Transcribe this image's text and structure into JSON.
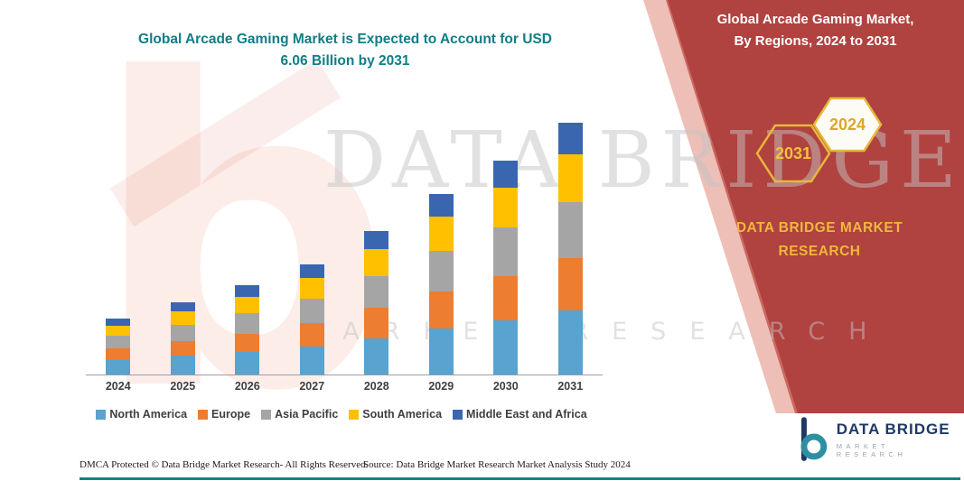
{
  "title": {
    "line1": "Global Arcade Gaming Market is Expected to Account for USD",
    "line2": "6.06 Billion by 2031"
  },
  "side_panel": {
    "heading_line1": "Global Arcade Gaming Market,",
    "heading_line2": "By Regions, 2024 to 2031",
    "hex_left_year": "2031",
    "hex_right_year": "2024",
    "brand_line1": "DATA BRIDGE MARKET",
    "brand_line2": "RESEARCH"
  },
  "watermark": {
    "line1": "DATA BRIDGE",
    "line2": "MARKET RESEARCH"
  },
  "chart_data": {
    "type": "bar",
    "stacked": true,
    "title": "Global Arcade Gaming Market is Expected to Account for USD 6.06 Billion by 2031",
    "units": "USD Billion",
    "categories": [
      "2024",
      "2025",
      "2026",
      "2027",
      "2028",
      "2029",
      "2030",
      "2031"
    ],
    "series": [
      {
        "name": "North America",
        "color": "#58A3CF",
        "values": [
          0.35,
          0.45,
          0.55,
          0.68,
          0.88,
          1.1,
          1.3,
          1.55
        ]
      },
      {
        "name": "Europe",
        "color": "#ED7D31",
        "values": [
          0.28,
          0.36,
          0.44,
          0.55,
          0.72,
          0.9,
          1.07,
          1.25
        ]
      },
      {
        "name": "Asia Pacific",
        "color": "#A5A5A5",
        "values": [
          0.3,
          0.39,
          0.48,
          0.6,
          0.78,
          0.98,
          1.17,
          1.36
        ]
      },
      {
        "name": "South America",
        "color": "#FFC000",
        "values": [
          0.25,
          0.33,
          0.4,
          0.5,
          0.65,
          0.82,
          0.97,
          1.15
        ]
      },
      {
        "name": "Middle East and Africa",
        "color": "#3A66B0",
        "values": [
          0.17,
          0.22,
          0.28,
          0.32,
          0.42,
          0.55,
          0.64,
          0.75
        ]
      }
    ],
    "totals": [
      1.35,
      1.75,
      2.15,
      2.65,
      3.45,
      4.35,
      5.15,
      6.06
    ],
    "xlabel": "",
    "ylabel": "",
    "ylim": [
      0,
      6.5
    ],
    "grid": false,
    "legend_position": "bottom"
  },
  "footer": {
    "dmca": "DMCA Protected © Data Bridge Market Research-  All Rights Reserved.",
    "source": "Source: Data Bridge Market Research  Market Analysis Study 2024"
  },
  "logo": {
    "name": "DATA BRIDGE",
    "subtitle": "MARKET RESEARCH"
  },
  "colors": {
    "panel_red": "#B04240",
    "title_teal": "#0F7E87",
    "accent_yellow": "#EDB93B",
    "watermark_gray": "#C4C4C4",
    "logo_navy": "#1F3864",
    "logo_teal": "#2E8FA3",
    "footer_line_teal": "#15808C",
    "axis_gray": "#9E9E9E",
    "label_gray": "#3F3F3F"
  }
}
